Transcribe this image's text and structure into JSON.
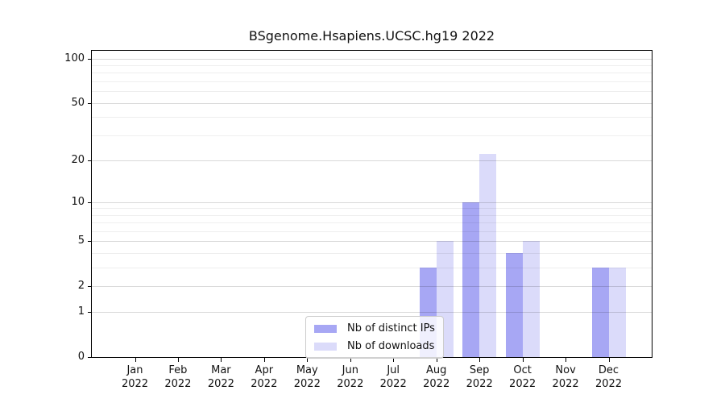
{
  "chart_data": {
    "type": "bar",
    "title": "BSgenome.Hsapiens.UCSC.hg19 2022",
    "categories": [
      "Jan",
      "Feb",
      "Mar",
      "Apr",
      "May",
      "Jun",
      "Jul",
      "Aug",
      "Sep",
      "Oct",
      "Nov",
      "Dec"
    ],
    "year": "2022",
    "series": [
      {
        "name": "Nb of distinct IPs",
        "color": "#a7a7f4",
        "values": [
          0,
          0,
          0,
          0,
          0,
          0,
          0,
          3,
          10,
          4,
          0,
          3
        ]
      },
      {
        "name": "Nb of downloads",
        "color": "#dbdbfa",
        "values": [
          0,
          0,
          0,
          0,
          0,
          0,
          0,
          5,
          22,
          5,
          0,
          3
        ]
      }
    ],
    "yscale": "log1p",
    "ylim": [
      0,
      113
    ],
    "yticks": {
      "values": [
        0,
        1,
        2,
        5,
        10,
        20,
        50,
        100
      ],
      "labels": [
        "0",
        "1",
        "2",
        "5",
        "10",
        "20",
        "50",
        "100"
      ]
    },
    "minor_gridline_values": [
      3,
      4,
      6,
      7,
      8,
      9,
      30,
      40,
      60,
      70,
      80,
      90
    ],
    "grid": true,
    "legend_position": "lower-center",
    "xlabel": "",
    "ylabel": ""
  },
  "colors": {
    "background": "#ffffff",
    "axis": "#000000",
    "text": "#111111",
    "major_grid": "rgba(0,0,0,0.15)",
    "minor_grid": "rgba(0,0,0,0.065)",
    "legend_border": "#cccccc"
  }
}
